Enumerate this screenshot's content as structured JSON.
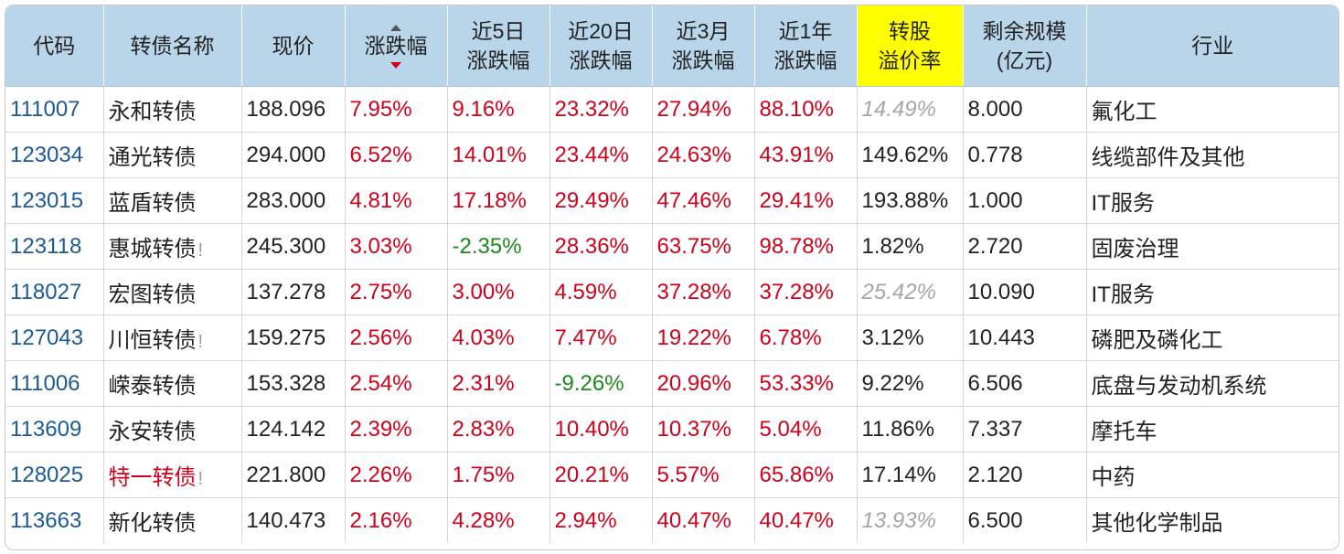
{
  "headers": {
    "code": "代码",
    "name": "转债名称",
    "price": "现价",
    "change": "涨跌幅",
    "d5_l1": "近5日",
    "d5_l2": "涨跌幅",
    "d20_l1": "近20日",
    "d20_l2": "涨跌幅",
    "m3_l1": "近3月",
    "m3_l2": "涨跌幅",
    "y1_l1": "近1年",
    "y1_l2": "涨跌幅",
    "prem_l1": "转股",
    "prem_l2": "溢价率",
    "size_l1": "剩余规模",
    "size_l2": "(亿元)",
    "industry": "行业"
  },
  "highlight_color": "#ffff00",
  "rows": [
    {
      "code": "111007",
      "name": "永和转债",
      "flag": "",
      "price": "188.096",
      "change": "7.95%",
      "d5": "9.16%",
      "d20": "23.32%",
      "m3": "27.94%",
      "y1": "88.10%",
      "premium": "14.49%",
      "size": "8.000",
      "industry": "氟化工"
    },
    {
      "code": "123034",
      "name": "通光转债",
      "flag": "",
      "price": "294.000",
      "change": "6.52%",
      "d5": "14.01%",
      "d20": "23.44%",
      "m3": "24.63%",
      "y1": "43.91%",
      "premium": "149.62%",
      "size": "0.778",
      "industry": "线缆部件及其他"
    },
    {
      "code": "123015",
      "name": "蓝盾转债",
      "flag": "",
      "price": "283.000",
      "change": "4.81%",
      "d5": "17.18%",
      "d20": "29.49%",
      "m3": "47.46%",
      "y1": "29.41%",
      "premium": "193.88%",
      "size": "1.000",
      "industry": "IT服务"
    },
    {
      "code": "123118",
      "name": "惠城转债",
      "flag": "!",
      "price": "245.300",
      "change": "3.03%",
      "d5": "-2.35%",
      "d20": "28.36%",
      "m3": "63.75%",
      "y1": "98.78%",
      "premium": "1.82%",
      "size": "2.720",
      "industry": "固废治理"
    },
    {
      "code": "118027",
      "name": "宏图转债",
      "flag": "",
      "price": "137.278",
      "change": "2.75%",
      "d5": "3.00%",
      "d20": "4.59%",
      "m3": "37.28%",
      "y1": "37.28%",
      "premium": "25.42%",
      "size": "10.090",
      "industry": "IT服务"
    },
    {
      "code": "127043",
      "name": "川恒转债",
      "flag": "!",
      "price": "159.275",
      "change": "2.56%",
      "d5": "4.03%",
      "d20": "7.47%",
      "m3": "19.22%",
      "y1": "6.78%",
      "premium": "3.12%",
      "size": "10.443",
      "industry": "磷肥及磷化工"
    },
    {
      "code": "111006",
      "name": "嵘泰转债",
      "flag": "",
      "price": "153.328",
      "change": "2.54%",
      "d5": "2.31%",
      "d20": "-9.26%",
      "m3": "20.96%",
      "y1": "53.33%",
      "premium": "9.22%",
      "size": "6.506",
      "industry": "底盘与发动机系统"
    },
    {
      "code": "113609",
      "name": "永安转债",
      "flag": "",
      "price": "124.142",
      "change": "2.39%",
      "d5": "2.83%",
      "d20": "10.40%",
      "m3": "10.37%",
      "y1": "5.04%",
      "premium": "11.86%",
      "size": "7.337",
      "industry": "摩托车"
    },
    {
      "code": "128025",
      "name": "特一转债",
      "flag": "!",
      "price": "221.800",
      "change": "2.26%",
      "d5": "1.75%",
      "d20": "20.21%",
      "m3": "5.57%",
      "y1": "65.86%",
      "premium": "17.14%",
      "size": "2.120",
      "industry": "中药"
    },
    {
      "code": "113663",
      "name": "新化转债",
      "flag": "",
      "price": "140.473",
      "change": "2.16%",
      "d5": "4.28%",
      "d20": "2.94%",
      "m3": "40.47%",
      "y1": "40.47%",
      "premium": "13.93%",
      "size": "6.500",
      "industry": "其他化学制品"
    }
  ]
}
